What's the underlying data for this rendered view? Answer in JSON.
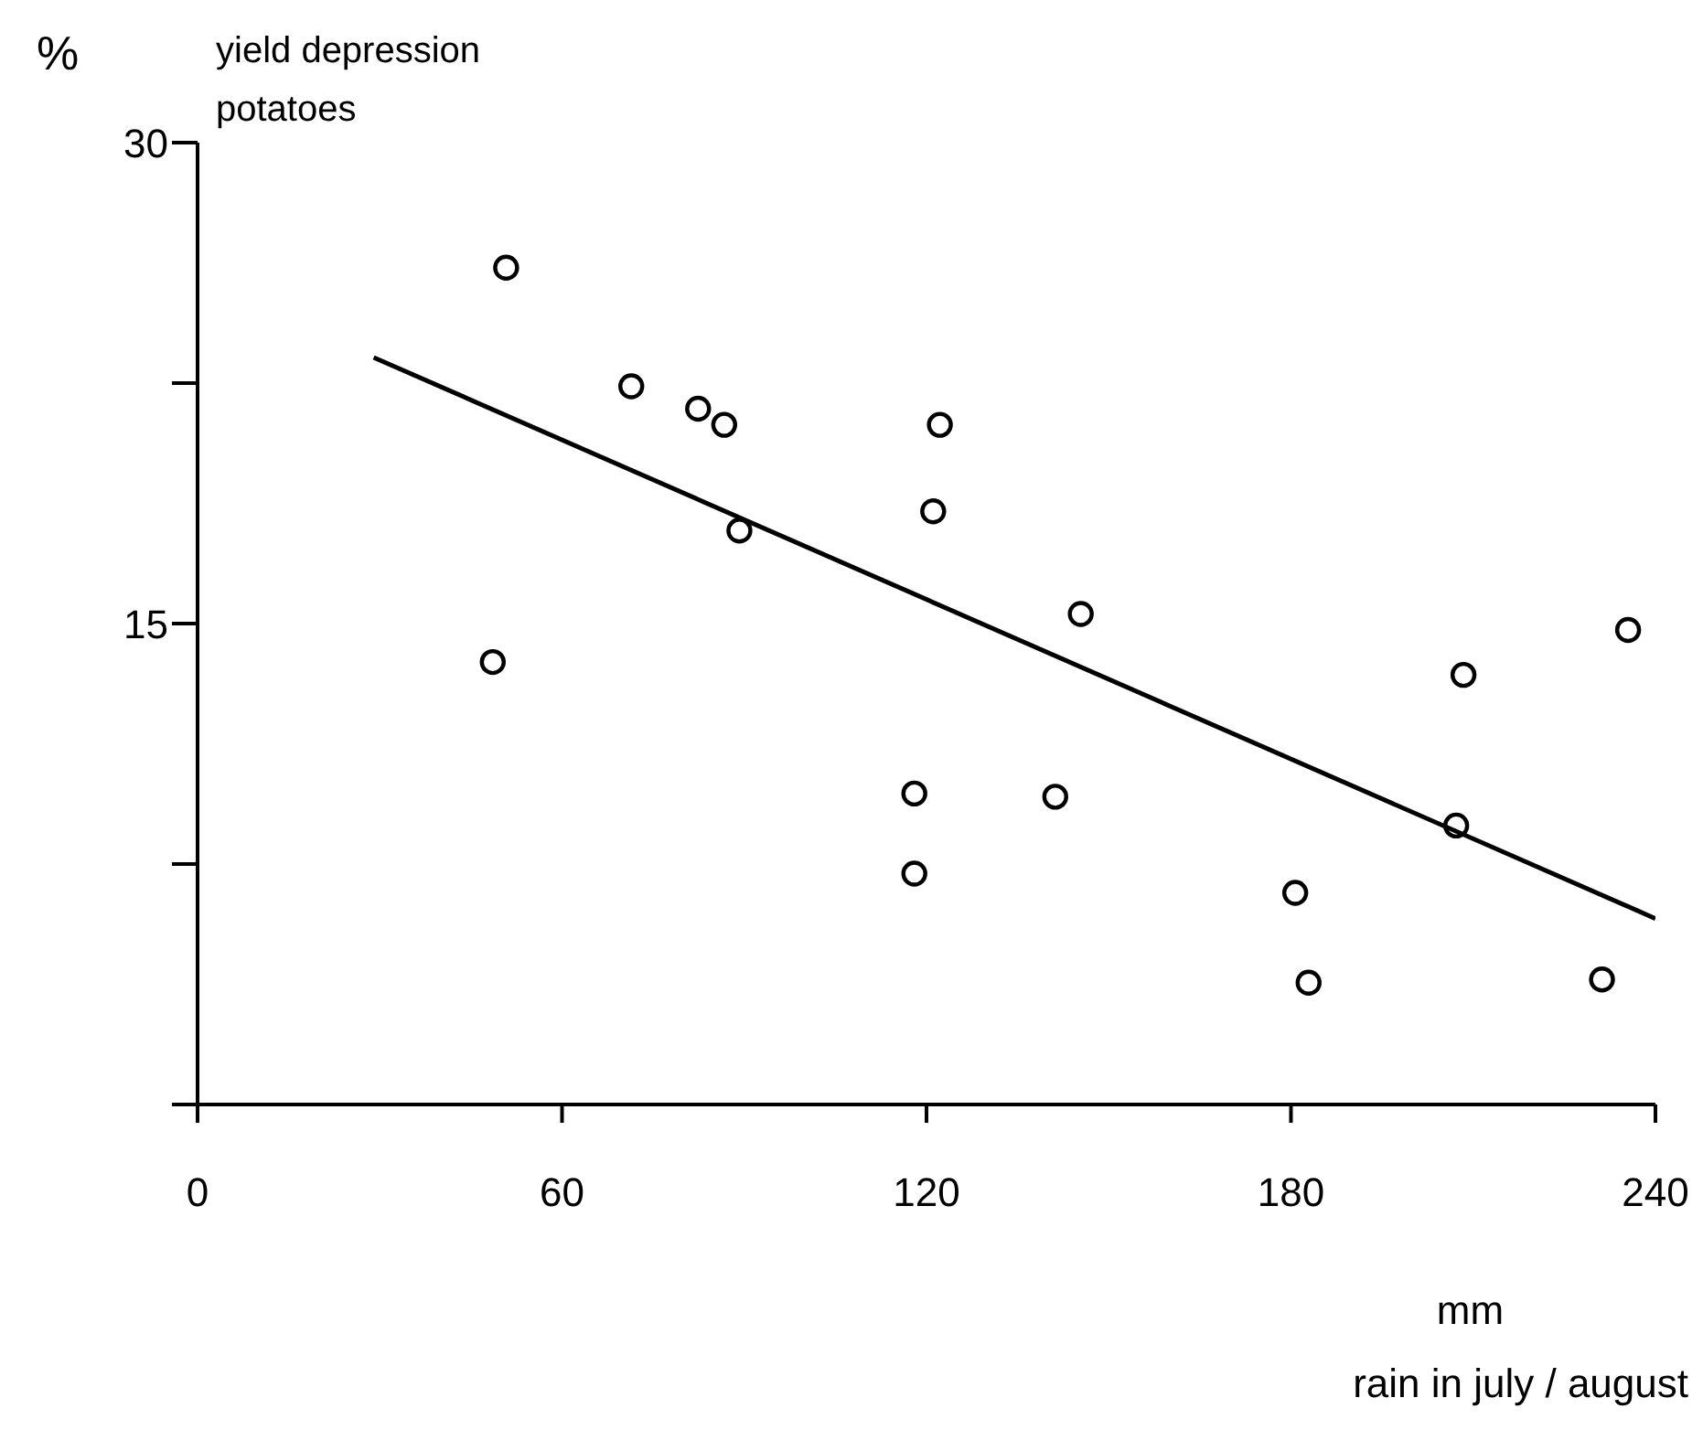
{
  "chart_data": {
    "type": "scatter",
    "title": "yield depression\npotatoes",
    "ylabel": "%",
    "xlabel": "rain in july / august",
    "annotations": [
      "mm"
    ],
    "xlim": [
      0,
      240
    ],
    "xticks": [
      0,
      60,
      120,
      180,
      240
    ],
    "ylim": [
      0,
      30
    ],
    "yticks": [
      {
        "value": 0,
        "label": null
      },
      {
        "value": 7.5,
        "label": null
      },
      15,
      {
        "value": 22.5,
        "label": null
      },
      30
    ],
    "grid": false,
    "series": [
      {
        "marker": "circle",
        "color": "#000000",
        "x": [
          50.8,
          48.6,
          71.4,
          82.4,
          86.7,
          89.2,
          122.2,
          121.1,
          118,
          118,
          141.2,
          145.4,
          180.7,
          182.9,
          208.4,
          207.2,
          231.2,
          235.5
        ],
        "values": [
          26.1,
          13.8,
          22.4,
          21.7,
          21.2,
          17.9,
          21.2,
          18.5,
          9.7,
          7.2,
          9.6,
          15.3,
          6.6,
          3.8,
          13.4,
          8.7,
          3.9,
          14.8
        ]
      },
      {
        "type": "line",
        "marker": "none",
        "color": "#000000",
        "x": [
          29,
          240
        ],
        "values": [
          23.3,
          5.8
        ]
      }
    ]
  }
}
